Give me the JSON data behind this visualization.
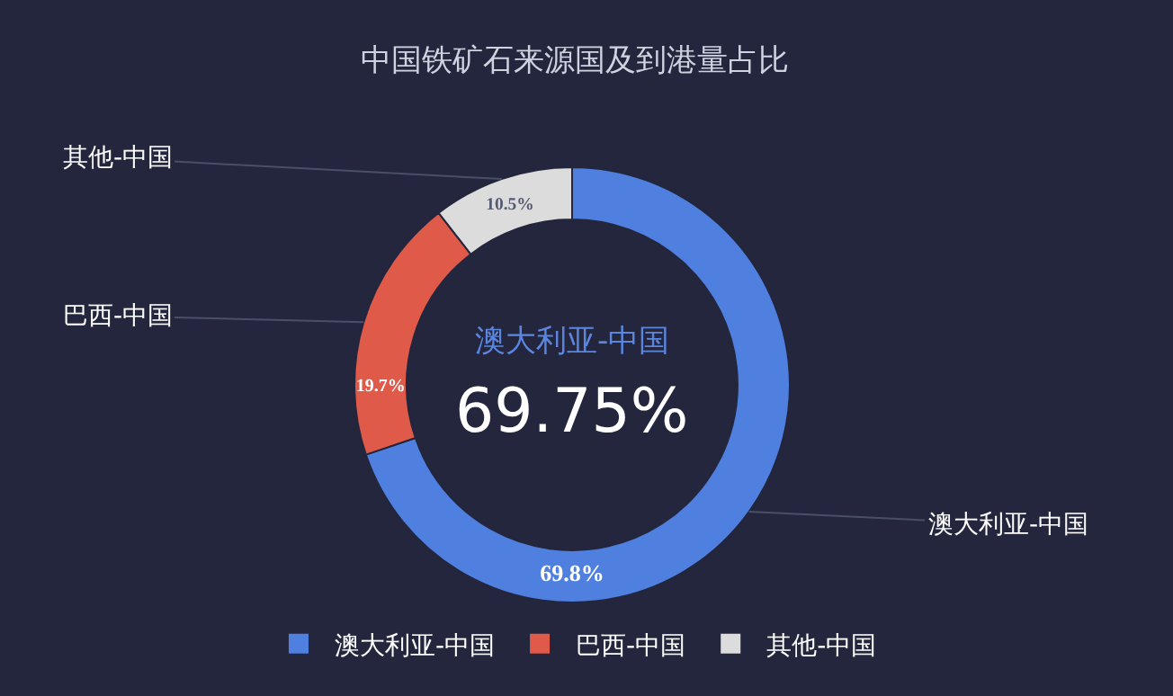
{
  "chart_data": {
    "type": "donut",
    "title": "中国铁矿石来源国及到港量占比",
    "categories": [
      "澳大利亚-中国",
      "巴西-中国",
      "其他-中国"
    ],
    "values": [
      69.8,
      19.7,
      10.5
    ],
    "value_labels": [
      "69.8%",
      "19.7%",
      "10.5%"
    ],
    "colors": [
      "#4f7fdf",
      "#e05a4a",
      "#dcdcdc"
    ],
    "annotations": [
      "澳大利亚-中国",
      "69.75%"
    ],
    "legend": "bottom"
  }
}
